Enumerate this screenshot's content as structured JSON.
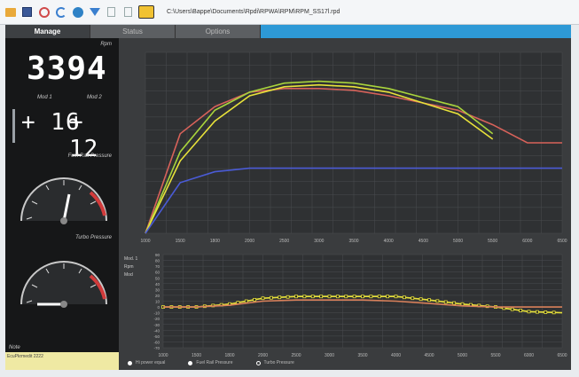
{
  "toolbar": {
    "icons": [
      "folder-icon",
      "save-icon",
      "settings-icon",
      "refresh-icon",
      "globe-icon",
      "filter-icon",
      "copy-icon",
      "paste-icon",
      "logo-icon"
    ],
    "file_path": "C:\\Users\\Bappe\\Documents\\Rpdi\\RPWA\\RPM\\RPM_SS17l.rpd"
  },
  "tabs": [
    {
      "label": "Manage",
      "active": true
    },
    {
      "label": "Status",
      "active": false
    },
    {
      "label": "Options",
      "active": false
    }
  ],
  "left_panel": {
    "rpm_label": "Rpm",
    "rpm_value": "3394",
    "mod1_label": "Mod 1",
    "mod2_label": "Mod 2",
    "mod1_value": "+ 16",
    "mod2_value": "+ 12",
    "fuel_rail_label": "Fuel Rail Pressure",
    "turbo_label": "Turbo Pressure",
    "notes_label": "Note",
    "notes_text": "EcuPkrmedit 2222"
  },
  "colors": {
    "blue": "#4a5bd6",
    "red": "#d8625a",
    "yellow": "#e8e23a",
    "green": "#a9d43c",
    "orange": "#d9805a"
  },
  "chart_data": [
    {
      "type": "line",
      "x": [
        1000,
        1500,
        2000,
        2500,
        3000,
        3500,
        4000,
        4500,
        5000,
        5500,
        6000,
        6500,
        7000
      ],
      "x_ticks": [
        "1000",
        "1500",
        "1800",
        "2000",
        "2500",
        "3000",
        "3500",
        "4000",
        "4500",
        "5000",
        "5500",
        "6000",
        "6500"
      ],
      "series": [
        {
          "color": "#d8625a",
          "values": [
            0,
            55,
            70,
            78,
            80,
            80,
            79,
            76,
            72,
            68,
            60,
            50,
            50
          ]
        },
        {
          "color": "#a9d43c",
          "values": [
            0,
            45,
            68,
            78,
            83,
            84,
            83,
            80,
            75,
            70,
            55,
            null,
            null
          ]
        },
        {
          "color": "#e8e23a",
          "values": [
            0,
            40,
            62,
            76,
            81,
            82,
            81,
            78,
            72,
            66,
            52,
            null,
            null
          ]
        },
        {
          "color": "#4a5bd6",
          "values": [
            0,
            28,
            34,
            36,
            36,
            36,
            36,
            36,
            36,
            36,
            36,
            36,
            36
          ]
        }
      ],
      "ylim": [
        0,
        100
      ]
    },
    {
      "type": "line",
      "x": [
        1000,
        1500,
        2000,
        2500,
        3000,
        3500,
        4000,
        4500,
        5000,
        5500,
        6000,
        6500,
        7000
      ],
      "x_ticks": [
        "1000",
        "1500",
        "1800",
        "2000",
        "2500",
        "3000",
        "3500",
        "4000",
        "4500",
        "5000",
        "5500",
        "6000",
        "6500"
      ],
      "y_ticks": [
        "90",
        "80",
        "70",
        "60",
        "50",
        "40",
        "30",
        "20",
        "10",
        "0",
        "-10",
        "-20",
        "-30",
        "-40",
        "-50",
        "-60",
        "-70"
      ],
      "y_axis_labels": [
        "Mod. 1",
        "Rpm",
        "Mod"
      ],
      "series": [
        {
          "color": "#e8e23a",
          "values": [
            0,
            0,
            5,
            15,
            18,
            18,
            18,
            18,
            12,
            5,
            0,
            -8,
            -10
          ]
        },
        {
          "color": "#d9805a",
          "values": [
            0,
            0,
            3,
            10,
            12,
            12,
            12,
            10,
            6,
            2,
            0,
            0,
            0
          ]
        }
      ],
      "ylim": [
        -70,
        90
      ]
    }
  ],
  "legend": [
    {
      "label": "Hi power equal",
      "color": "#ffffff"
    },
    {
      "label": "Fuel Rail Pressure",
      "color": "#ffffff"
    },
    {
      "label": "Turbo Pressure",
      "color": "#ffffff"
    }
  ]
}
